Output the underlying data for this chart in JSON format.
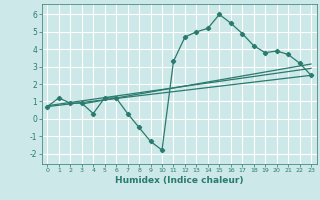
{
  "xlabel": "Humidex (Indice chaleur)",
  "bg_color": "#cde8e8",
  "grid_color": "#ffffff",
  "line_color": "#2a7a6e",
  "xlim": [
    -0.5,
    23.5
  ],
  "ylim": [
    -2.6,
    6.6
  ],
  "xticks": [
    0,
    1,
    2,
    3,
    4,
    5,
    6,
    7,
    8,
    9,
    10,
    11,
    12,
    13,
    14,
    15,
    16,
    17,
    18,
    19,
    20,
    21,
    22,
    23
  ],
  "yticks": [
    -2,
    -1,
    0,
    1,
    2,
    3,
    4,
    5,
    6
  ],
  "zigzag_x": [
    0,
    1,
    2,
    3,
    4,
    5,
    6,
    7,
    8,
    9,
    10,
    11,
    12,
    13,
    14,
    15,
    16,
    17,
    18,
    19,
    20,
    21,
    22,
    23
  ],
  "zigzag_y": [
    0.7,
    1.2,
    0.9,
    0.9,
    0.3,
    1.2,
    1.2,
    0.3,
    -0.5,
    -1.3,
    -1.8,
    3.3,
    4.7,
    5.0,
    5.2,
    6.0,
    5.5,
    4.9,
    4.2,
    3.8,
    3.9,
    3.7,
    3.2,
    2.5
  ],
  "line1_x": [
    0,
    23
  ],
  "line1_y": [
    0.7,
    2.5
  ],
  "line2_x": [
    3,
    23
  ],
  "line2_y": [
    0.85,
    3.15
  ],
  "line3_x": [
    0,
    23
  ],
  "line3_y": [
    0.75,
    2.9
  ]
}
